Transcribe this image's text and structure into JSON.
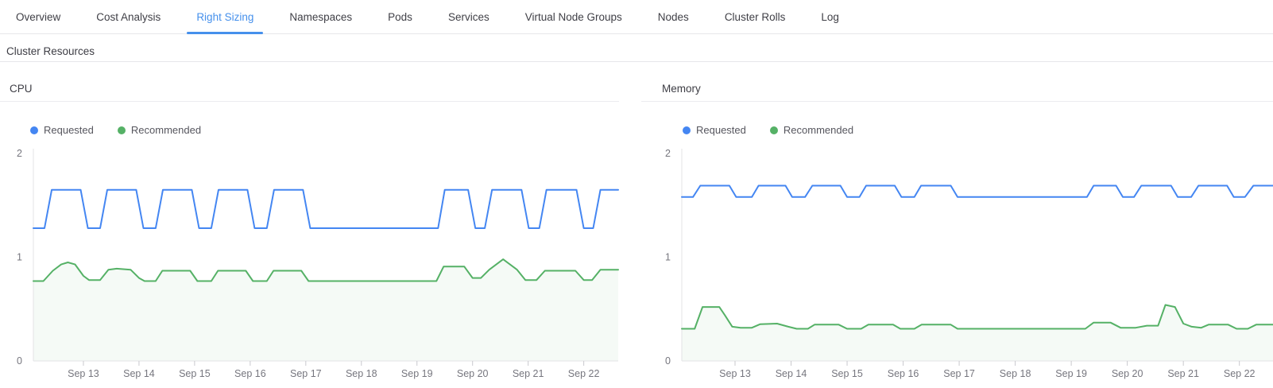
{
  "theme": {
    "accent": "#4590ec",
    "requested_color": "#4486f2",
    "recommended_color": "#55b166"
  },
  "tabs": {
    "items": [
      {
        "label": "Overview",
        "active": false
      },
      {
        "label": "Cost Analysis",
        "active": false
      },
      {
        "label": "Right Sizing",
        "active": true
      },
      {
        "label": "Namespaces",
        "active": false
      },
      {
        "label": "Pods",
        "active": false
      },
      {
        "label": "Services",
        "active": false
      },
      {
        "label": "Virtual Node Groups",
        "active": false
      },
      {
        "label": "Nodes",
        "active": false
      },
      {
        "label": "Cluster Rolls",
        "active": false
      },
      {
        "label": "Log",
        "active": false
      }
    ]
  },
  "section": {
    "title": "Cluster Resources"
  },
  "chart_data": [
    {
      "type": "line",
      "title": "CPU",
      "xlabel": "",
      "ylabel": "",
      "xlim": [
        12.1,
        22.62
      ],
      "ylim": [
        0,
        2
      ],
      "grid": false,
      "legend_position": "top-left",
      "y_ticks": [
        0,
        1,
        2
      ],
      "x_ticks": [
        {
          "day": 13,
          "label": "Sep 13"
        },
        {
          "day": 14,
          "label": "Sep 14"
        },
        {
          "day": 15,
          "label": "Sep 15"
        },
        {
          "day": 16,
          "label": "Sep 16"
        },
        {
          "day": 17,
          "label": "Sep 17"
        },
        {
          "day": 18,
          "label": "Sep 18"
        },
        {
          "day": 19,
          "label": "Sep 19"
        },
        {
          "day": 20,
          "label": "Sep 20"
        },
        {
          "day": 21,
          "label": "Sep 21"
        },
        {
          "day": 22,
          "label": "Sep 22"
        }
      ],
      "series": [
        {
          "name": "Requested",
          "color": "#4486f2",
          "area": false,
          "points": [
            [
              12.1,
              1.28
            ],
            [
              12.3,
              1.28
            ],
            [
              12.43,
              1.65
            ],
            [
              12.95,
              1.65
            ],
            [
              13.08,
              1.28
            ],
            [
              13.3,
              1.28
            ],
            [
              13.43,
              1.65
            ],
            [
              13.95,
              1.65
            ],
            [
              14.08,
              1.28
            ],
            [
              14.3,
              1.28
            ],
            [
              14.43,
              1.65
            ],
            [
              14.95,
              1.65
            ],
            [
              15.08,
              1.28
            ],
            [
              15.3,
              1.28
            ],
            [
              15.43,
              1.65
            ],
            [
              15.95,
              1.65
            ],
            [
              16.08,
              1.28
            ],
            [
              16.3,
              1.28
            ],
            [
              16.43,
              1.65
            ],
            [
              16.95,
              1.65
            ],
            [
              17.08,
              1.28
            ],
            [
              19.38,
              1.28
            ],
            [
              19.5,
              1.65
            ],
            [
              19.92,
              1.65
            ],
            [
              20.05,
              1.28
            ],
            [
              20.22,
              1.28
            ],
            [
              20.35,
              1.65
            ],
            [
              20.88,
              1.65
            ],
            [
              21.01,
              1.28
            ],
            [
              21.2,
              1.28
            ],
            [
              21.33,
              1.65
            ],
            [
              21.87,
              1.65
            ],
            [
              22.0,
              1.28
            ],
            [
              22.17,
              1.28
            ],
            [
              22.3,
              1.65
            ],
            [
              22.62,
              1.65
            ]
          ]
        },
        {
          "name": "Recommended",
          "color": "#55b166",
          "area": true,
          "area_opacity": 0.06,
          "points": [
            [
              12.1,
              0.77
            ],
            [
              12.28,
              0.77
            ],
            [
              12.45,
              0.87
            ],
            [
              12.6,
              0.93
            ],
            [
              12.72,
              0.95
            ],
            [
              12.85,
              0.93
            ],
            [
              13.0,
              0.82
            ],
            [
              13.1,
              0.78
            ],
            [
              13.3,
              0.78
            ],
            [
              13.45,
              0.88
            ],
            [
              13.6,
              0.89
            ],
            [
              13.85,
              0.88
            ],
            [
              14.0,
              0.8
            ],
            [
              14.1,
              0.77
            ],
            [
              14.3,
              0.77
            ],
            [
              14.42,
              0.87
            ],
            [
              14.92,
              0.87
            ],
            [
              15.05,
              0.77
            ],
            [
              15.3,
              0.77
            ],
            [
              15.42,
              0.87
            ],
            [
              15.92,
              0.87
            ],
            [
              16.05,
              0.77
            ],
            [
              16.3,
              0.77
            ],
            [
              16.42,
              0.87
            ],
            [
              16.92,
              0.87
            ],
            [
              17.05,
              0.77
            ],
            [
              19.35,
              0.77
            ],
            [
              19.48,
              0.91
            ],
            [
              19.85,
              0.91
            ],
            [
              20.0,
              0.8
            ],
            [
              20.15,
              0.8
            ],
            [
              20.3,
              0.88
            ],
            [
              20.55,
              0.98
            ],
            [
              20.8,
              0.88
            ],
            [
              20.95,
              0.78
            ],
            [
              21.15,
              0.78
            ],
            [
              21.3,
              0.87
            ],
            [
              21.85,
              0.87
            ],
            [
              22.0,
              0.78
            ],
            [
              22.15,
              0.78
            ],
            [
              22.3,
              0.88
            ],
            [
              22.62,
              0.88
            ]
          ]
        }
      ]
    },
    {
      "type": "line",
      "title": "Memory",
      "xlabel": "",
      "ylabel": "",
      "xlim": [
        12.05,
        22.6
      ],
      "ylim": [
        0,
        2
      ],
      "grid": false,
      "legend_position": "top-left",
      "y_ticks": [
        0,
        1,
        2
      ],
      "x_ticks": [
        {
          "day": 13,
          "label": "Sep 13"
        },
        {
          "day": 14,
          "label": "Sep 14"
        },
        {
          "day": 15,
          "label": "Sep 15"
        },
        {
          "day": 16,
          "label": "Sep 16"
        },
        {
          "day": 17,
          "label": "Sep 17"
        },
        {
          "day": 18,
          "label": "Sep 18"
        },
        {
          "day": 19,
          "label": "Sep 19"
        },
        {
          "day": 20,
          "label": "Sep 20"
        },
        {
          "day": 21,
          "label": "Sep 21"
        },
        {
          "day": 22,
          "label": "Sep 22"
        }
      ],
      "series": [
        {
          "name": "Requested",
          "color": "#4486f2",
          "area": false,
          "points": [
            [
              12.05,
              1.58
            ],
            [
              12.25,
              1.58
            ],
            [
              12.38,
              1.69
            ],
            [
              12.9,
              1.69
            ],
            [
              13.02,
              1.58
            ],
            [
              13.3,
              1.58
            ],
            [
              13.42,
              1.69
            ],
            [
              13.9,
              1.69
            ],
            [
              14.02,
              1.58
            ],
            [
              14.25,
              1.58
            ],
            [
              14.38,
              1.69
            ],
            [
              14.88,
              1.69
            ],
            [
              15.0,
              1.58
            ],
            [
              15.22,
              1.58
            ],
            [
              15.34,
              1.69
            ],
            [
              15.85,
              1.69
            ],
            [
              15.97,
              1.58
            ],
            [
              16.2,
              1.58
            ],
            [
              16.32,
              1.69
            ],
            [
              16.85,
              1.69
            ],
            [
              16.97,
              1.58
            ],
            [
              19.28,
              1.58
            ],
            [
              19.4,
              1.69
            ],
            [
              19.8,
              1.69
            ],
            [
              19.92,
              1.58
            ],
            [
              20.12,
              1.58
            ],
            [
              20.25,
              1.69
            ],
            [
              20.78,
              1.69
            ],
            [
              20.9,
              1.58
            ],
            [
              21.14,
              1.58
            ],
            [
              21.27,
              1.69
            ],
            [
              21.78,
              1.69
            ],
            [
              21.9,
              1.58
            ],
            [
              22.1,
              1.58
            ],
            [
              22.25,
              1.69
            ],
            [
              22.6,
              1.69
            ]
          ]
        },
        {
          "name": "Recommended",
          "color": "#55b166",
          "area": true,
          "area_opacity": 0.06,
          "points": [
            [
              12.05,
              0.31
            ],
            [
              12.28,
              0.31
            ],
            [
              12.42,
              0.52
            ],
            [
              12.72,
              0.52
            ],
            [
              12.82,
              0.44
            ],
            [
              12.95,
              0.33
            ],
            [
              13.1,
              0.32
            ],
            [
              13.3,
              0.32
            ],
            [
              13.45,
              0.355
            ],
            [
              13.75,
              0.36
            ],
            [
              13.95,
              0.33
            ],
            [
              14.1,
              0.31
            ],
            [
              14.3,
              0.31
            ],
            [
              14.42,
              0.35
            ],
            [
              14.85,
              0.35
            ],
            [
              15.0,
              0.31
            ],
            [
              15.25,
              0.31
            ],
            [
              15.38,
              0.35
            ],
            [
              15.82,
              0.35
            ],
            [
              15.95,
              0.31
            ],
            [
              16.2,
              0.31
            ],
            [
              16.33,
              0.35
            ],
            [
              16.85,
              0.35
            ],
            [
              16.97,
              0.31
            ],
            [
              19.25,
              0.31
            ],
            [
              19.4,
              0.37
            ],
            [
              19.7,
              0.37
            ],
            [
              19.88,
              0.32
            ],
            [
              20.15,
              0.32
            ],
            [
              20.35,
              0.34
            ],
            [
              20.55,
              0.34
            ],
            [
              20.68,
              0.54
            ],
            [
              20.85,
              0.52
            ],
            [
              21.0,
              0.36
            ],
            [
              21.15,
              0.33
            ],
            [
              21.32,
              0.32
            ],
            [
              21.45,
              0.35
            ],
            [
              21.8,
              0.35
            ],
            [
              21.95,
              0.31
            ],
            [
              22.15,
              0.31
            ],
            [
              22.3,
              0.35
            ],
            [
              22.6,
              0.35
            ]
          ]
        }
      ]
    }
  ]
}
